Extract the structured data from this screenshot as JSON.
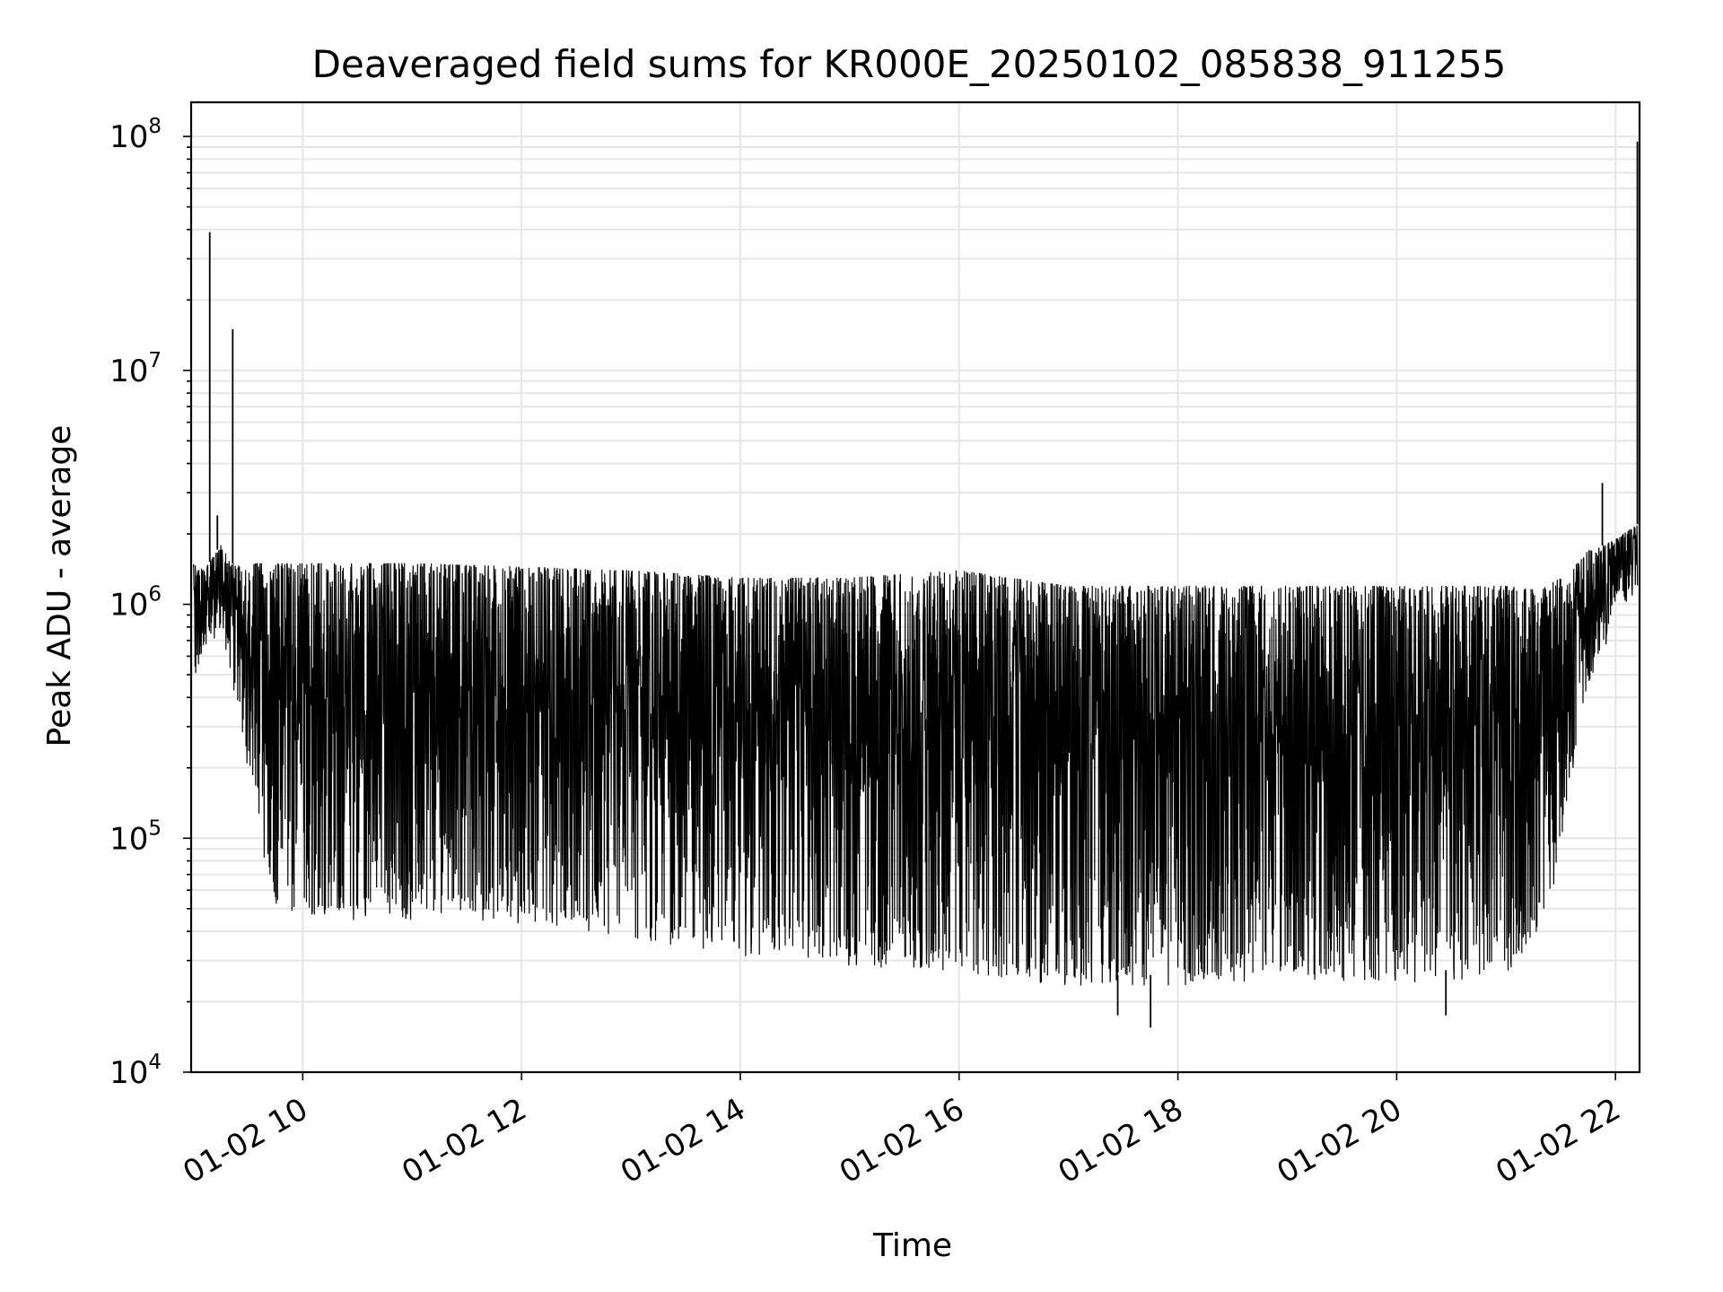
{
  "chart_data": {
    "type": "line",
    "title": "Deaveraged field sums for KR000E_20250102_085838_911255",
    "xlabel": "Time",
    "ylabel": "Peak ADU - average",
    "yscale": "log",
    "ylim": [
      10000,
      140000000
    ],
    "xlim": [
      "01-02 08:59",
      "01-02 22:13"
    ],
    "grid": true,
    "x_tick_labels": [
      "01-02 10",
      "01-02 12",
      "01-02 14",
      "01-02 16",
      "01-02 18",
      "01-02 20",
      "01-02 22"
    ],
    "x_tick_hours": [
      10,
      12,
      14,
      16,
      18,
      20,
      22
    ],
    "y_ticks": [
      {
        "value": 10000,
        "base": "10",
        "exp": "4"
      },
      {
        "value": 100000,
        "base": "10",
        "exp": "5"
      },
      {
        "value": 1000000,
        "base": "10",
        "exp": "6"
      },
      {
        "value": 10000000,
        "base": "10",
        "exp": "7"
      },
      {
        "value": 100000000,
        "base": "10",
        "exp": "8"
      }
    ],
    "colors": {
      "line": "#000000",
      "grid": "#e6e6e6"
    },
    "series": [
      {
        "envelope_hours": [
          9.0,
          9.1,
          9.25,
          9.35,
          9.45,
          9.55,
          9.65,
          9.75,
          10.0,
          11.0,
          12.0,
          13.0,
          14.0,
          15.0,
          16.0,
          17.0,
          18.0,
          19.0,
          20.0,
          21.0,
          21.3,
          21.5,
          21.65,
          21.75,
          21.9,
          22.0,
          22.2
        ],
        "upper": [
          1500000,
          1400000,
          1800000,
          1500000,
          1450000,
          1500000,
          1500000,
          1500000,
          1500000,
          1500000,
          1450000,
          1400000,
          1300000,
          1300000,
          1400000,
          1200000,
          1200000,
          1200000,
          1200000,
          1200000,
          1150000,
          1300000,
          1500000,
          1700000,
          1800000,
          1900000,
          2200000
        ],
        "lower": [
          400000,
          700000,
          800000,
          500000,
          280000,
          180000,
          90000,
          55000,
          50000,
          50000,
          48000,
          42000,
          35000,
          32000,
          30000,
          26000,
          26000,
          28000,
          26000,
          29000,
          40000,
          90000,
          300000,
          500000,
          700000,
          1100000,
          1200000
        ],
        "spikes": [
          {
            "hour": 9.15,
            "value": 39000000
          },
          {
            "hour": 9.36,
            "value": 15000000
          },
          {
            "hour": 9.22,
            "value": 2400000
          },
          {
            "hour": 21.88,
            "value": 3300000
          },
          {
            "hour": 22.2,
            "value": 95000000
          },
          {
            "hour": 17.75,
            "value": 15500
          },
          {
            "hour": 17.45,
            "value": 17500
          },
          {
            "hour": 20.45,
            "value": 17500
          }
        ]
      }
    ]
  }
}
